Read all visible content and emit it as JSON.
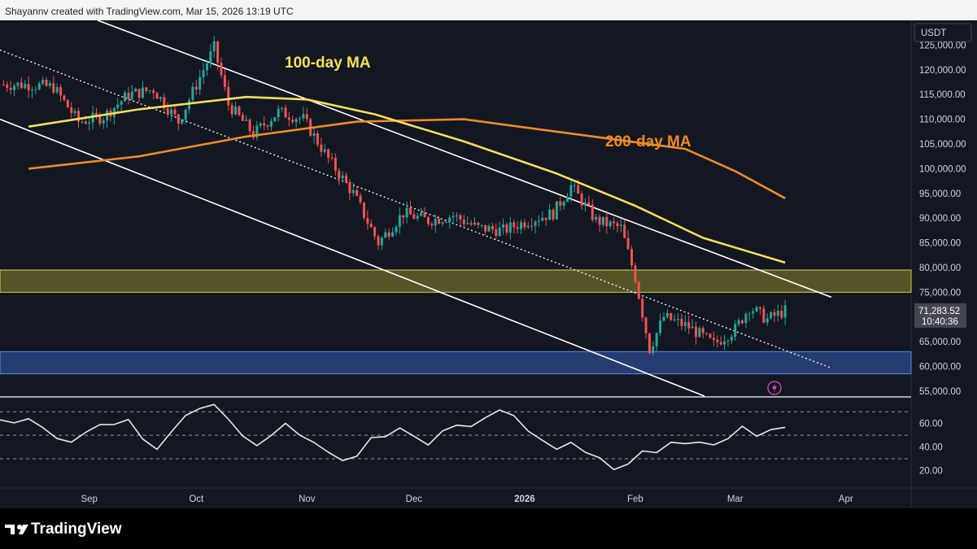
{
  "header": {
    "credit": "Shayannv created with TradingView.com, Mar 15, 2026 13:19 UTC"
  },
  "brand": {
    "name": "TradingView",
    "logo_icon": "tradingview-logo-icon"
  },
  "colors": {
    "background": "#131722",
    "ma100": "#f5e05a",
    "ma200": "#f08a24",
    "up": "#26a69a",
    "down": "#ef5350",
    "supply_zone": "#6b6a2a",
    "demand_zone": "#2e4a8c",
    "rsi": "#e8e8e8"
  },
  "chart_data": [
    {
      "type": "candlestick",
      "currency": "USDT",
      "y_ticks": [
        "125,000.00",
        "120,000.00",
        "115,000.00",
        "110,000.00",
        "105,000.00",
        "100,000.00",
        "95,000.00",
        "90,000.00",
        "85,000.00",
        "80,000.00",
        "75,000.00",
        "70,000.00",
        "65,000.00",
        "60,000.00",
        "55,000.00"
      ],
      "ylim": [
        54000,
        130000
      ],
      "x_ticks": [
        "Sep",
        "Oct",
        "Nov",
        "Dec",
        "2026",
        "Feb",
        "Mar",
        "Apr"
      ],
      "last_price": "71,283.52",
      "countdown": "10:40:36",
      "annotations": [
        "100-day MA",
        "200-day MA"
      ],
      "close_series": [
        {
          "date": "2025-08-15",
          "close": 117000
        },
        {
          "date": "2025-08-22",
          "close": 116500
        },
        {
          "date": "2025-08-29",
          "close": 109500
        },
        {
          "date": "2025-09-05",
          "close": 110500
        },
        {
          "date": "2025-09-12",
          "close": 115000
        },
        {
          "date": "2025-09-19",
          "close": 116000
        },
        {
          "date": "2025-09-26",
          "close": 109500
        },
        {
          "date": "2025-10-03",
          "close": 120000
        },
        {
          "date": "2025-10-06",
          "close": 124500
        },
        {
          "date": "2025-10-10",
          "close": 113000
        },
        {
          "date": "2025-10-17",
          "close": 107000
        },
        {
          "date": "2025-10-24",
          "close": 111500
        },
        {
          "date": "2025-10-31",
          "close": 110000
        },
        {
          "date": "2025-11-07",
          "close": 102000
        },
        {
          "date": "2025-11-14",
          "close": 95000
        },
        {
          "date": "2025-11-21",
          "close": 85000
        },
        {
          "date": "2025-11-28",
          "close": 91000
        },
        {
          "date": "2025-12-05",
          "close": 89500
        },
        {
          "date": "2025-12-12",
          "close": 90500
        },
        {
          "date": "2025-12-19",
          "close": 88000
        },
        {
          "date": "2025-12-26",
          "close": 87500
        },
        {
          "date": "2026-01-02",
          "close": 89500
        },
        {
          "date": "2026-01-09",
          "close": 91000
        },
        {
          "date": "2026-01-14",
          "close": 96500
        },
        {
          "date": "2026-01-21",
          "close": 89500
        },
        {
          "date": "2026-01-28",
          "close": 88000
        },
        {
          "date": "2026-02-01",
          "close": 78000
        },
        {
          "date": "2026-02-05",
          "close": 63500
        },
        {
          "date": "2026-02-09",
          "close": 70000
        },
        {
          "date": "2026-02-16",
          "close": 68000
        },
        {
          "date": "2026-02-23",
          "close": 64500
        },
        {
          "date": "2026-03-01",
          "close": 67500
        },
        {
          "date": "2026-03-05",
          "close": 72000
        },
        {
          "date": "2026-03-10",
          "close": 69500
        },
        {
          "date": "2026-03-15",
          "close": 71283.52
        }
      ],
      "ma100_series": [
        {
          "date": "2025-08-15",
          "value": 108500
        },
        {
          "date": "2025-09-15",
          "value": 112000
        },
        {
          "date": "2025-10-15",
          "value": 114500
        },
        {
          "date": "2025-11-01",
          "value": 114000
        },
        {
          "date": "2025-11-20",
          "value": 111000
        },
        {
          "date": "2025-12-15",
          "value": 105500
        },
        {
          "date": "2026-01-10",
          "value": 99000
        },
        {
          "date": "2026-02-01",
          "value": 92500
        },
        {
          "date": "2026-02-20",
          "value": 86000
        },
        {
          "date": "2026-03-15",
          "value": 81000
        }
      ],
      "ma200_series": [
        {
          "date": "2025-08-15",
          "value": 100000
        },
        {
          "date": "2025-09-15",
          "value": 102500
        },
        {
          "date": "2025-10-15",
          "value": 106500
        },
        {
          "date": "2025-11-15",
          "value": 109500
        },
        {
          "date": "2025-12-15",
          "value": 110000
        },
        {
          "date": "2026-01-15",
          "value": 107000
        },
        {
          "date": "2026-02-15",
          "value": 104000
        },
        {
          "date": "2026-03-01",
          "value": 99500
        },
        {
          "date": "2026-03-15",
          "value": 94000
        }
      ],
      "zones": [
        {
          "name": "resistance zone",
          "from": 75000,
          "to": 79500
        },
        {
          "name": "support zone",
          "from": 58500,
          "to": 63000
        }
      ]
    },
    {
      "type": "line",
      "series": "RSI",
      "y_ticks": [
        "60.00",
        "40.00",
        "20.00"
      ],
      "levels": [
        70,
        50,
        30
      ],
      "ylim": [
        5,
        82
      ],
      "values": [
        62,
        58,
        66,
        55,
        50,
        45,
        52,
        60,
        57,
        63,
        48,
        40,
        55,
        68,
        72,
        75,
        62,
        48,
        40,
        52,
        58,
        50,
        42,
        36,
        28,
        34,
        46,
        50,
        55,
        49,
        44,
        52,
        56,
        58,
        63,
        72,
        66,
        55,
        46,
        40,
        44,
        36,
        31,
        18,
        24,
        34,
        38,
        42,
        40,
        46,
        44,
        50,
        56,
        52,
        55,
        58
      ]
    }
  ]
}
